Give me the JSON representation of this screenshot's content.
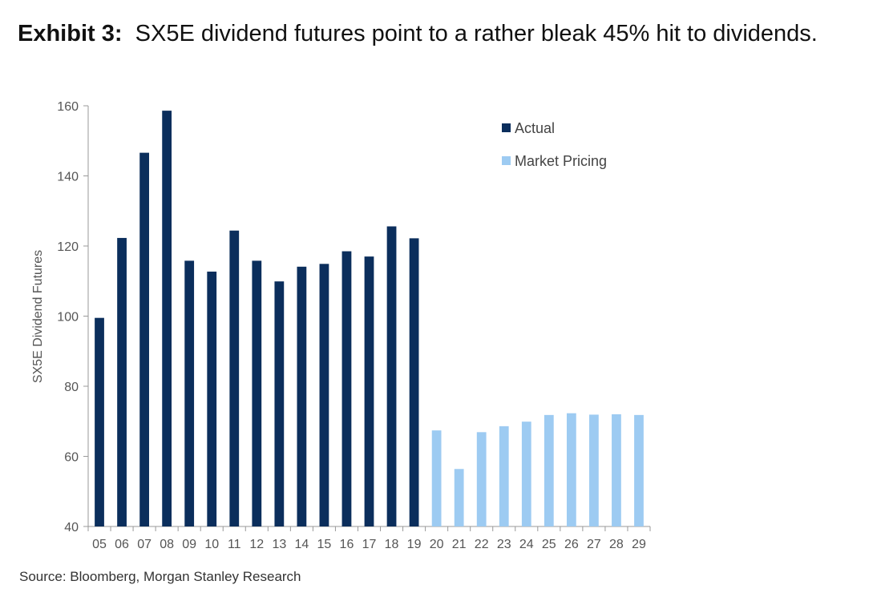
{
  "header": {
    "exhibit_label": "Exhibit 3:",
    "title": "SX5E dividend futures point to a rather bleak 45% hit to dividends."
  },
  "source": "Source: Bloomberg, Morgan Stanley Research",
  "chart_data": {
    "type": "bar",
    "categories": [
      "05",
      "06",
      "07",
      "08",
      "09",
      "10",
      "11",
      "12",
      "13",
      "14",
      "15",
      "16",
      "17",
      "18",
      "19",
      "20",
      "21",
      "22",
      "23",
      "24",
      "25",
      "26",
      "27",
      "28",
      "29"
    ],
    "series": [
      {
        "name": "Actual",
        "color": "#0b2e5c",
        "values": [
          99.5,
          122.3,
          146.6,
          158.6,
          115.8,
          112.7,
          124.4,
          115.8,
          109.9,
          114.1,
          114.9,
          118.5,
          117.0,
          125.6,
          122.2,
          null,
          null,
          null,
          null,
          null,
          null,
          null,
          null,
          null,
          null
        ]
      },
      {
        "name": "Market Pricing",
        "color": "#9dcbf2",
        "values": [
          null,
          null,
          null,
          null,
          null,
          null,
          null,
          null,
          null,
          null,
          null,
          null,
          null,
          null,
          null,
          67.4,
          56.4,
          66.9,
          68.6,
          69.9,
          71.8,
          72.3,
          71.9,
          72.0,
          71.8
        ]
      }
    ],
    "ylabel": "SX5E Dividend Futures",
    "xlabel": "",
    "ylim": [
      40,
      160
    ],
    "yticks": [
      40,
      60,
      80,
      100,
      120,
      140,
      160
    ],
    "legend_position": "top-right",
    "grid": false
  }
}
